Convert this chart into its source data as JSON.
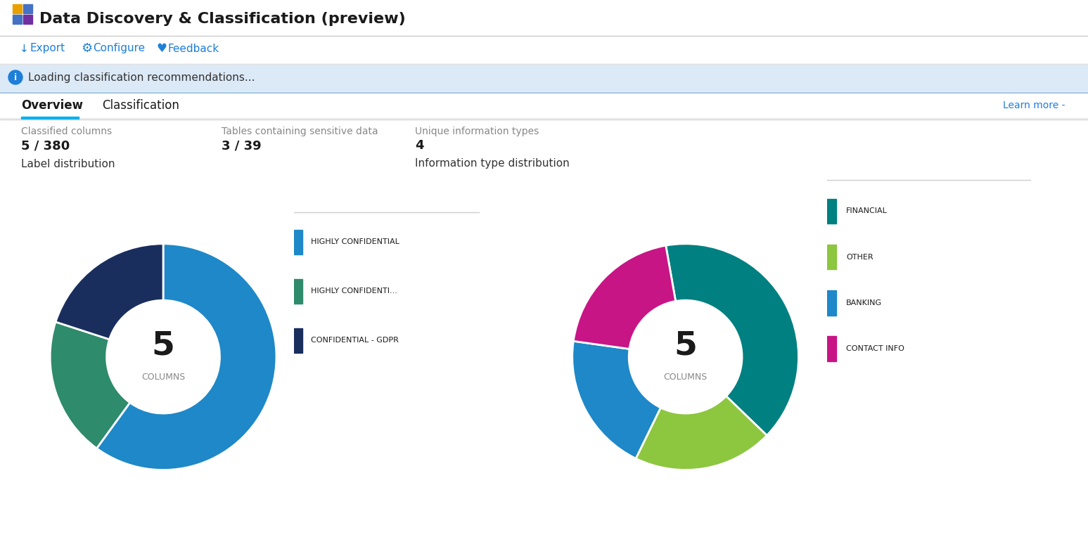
{
  "title": "Data Discovery & Classification (preview)",
  "bg_color": "#ffffff",
  "info_bar_text": "Loading classification recommendations...",
  "info_bar_bg": "#dce9f7",
  "tabs": [
    "Overview",
    "Classification"
  ],
  "learn_more": "Learn more -",
  "stats": [
    {
      "label": "Classified columns",
      "value": "5 / 380"
    },
    {
      "label": "Tables containing sensitive data",
      "value": "3 / 39"
    },
    {
      "label": "Unique information types",
      "value": "4"
    }
  ],
  "label_chart": {
    "title": "Label distribution",
    "center_number": "5",
    "center_label": "COLUMNS",
    "slices": [
      3,
      1,
      1
    ],
    "colors": [
      "#1e88c8",
      "#2e8b6b",
      "#1a2e5e"
    ],
    "legend_labels": [
      "HIGHLY CONFIDENTIAL",
      "HIGHLY CONFIDENTI...",
      "CONFIDENTIAL - GDPR"
    ],
    "legend_colors": [
      "#1e88c8",
      "#2e8b6b",
      "#1a2e5e"
    ]
  },
  "info_chart": {
    "title": "Information type distribution",
    "center_number": "5",
    "center_label": "COLUMNS",
    "slices": [
      2,
      1,
      1,
      1
    ],
    "colors": [
      "#008080",
      "#8dc63f",
      "#1e88c8",
      "#c71585"
    ],
    "legend_labels": [
      "FINANCIAL",
      "OTHER",
      "BANKING",
      "CONTACT INFO"
    ],
    "legend_colors": [
      "#008080",
      "#8dc63f",
      "#1e88c8",
      "#c71585"
    ]
  }
}
